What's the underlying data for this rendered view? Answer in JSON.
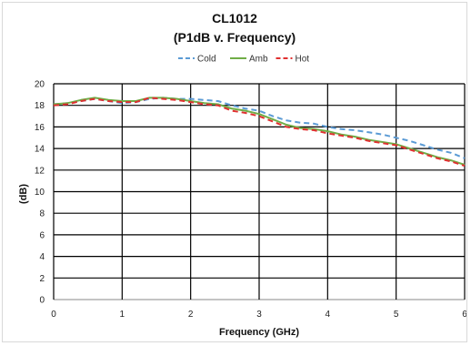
{
  "chart_data": {
    "type": "line",
    "title": "CL1012",
    "subtitle": "(P1dB v. Frequency)",
    "xlabel": "Frequency (GHz)",
    "ylabel": "(dB)",
    "xlim": [
      0,
      6
    ],
    "ylim": [
      0,
      20
    ],
    "xticks": [
      "0",
      "1",
      "2",
      "3",
      "4",
      "5",
      "6"
    ],
    "yticks": [
      "0",
      "2",
      "4",
      "6",
      "8",
      "10",
      "12",
      "14",
      "16",
      "18",
      "20"
    ],
    "grid": true,
    "legend_position": "top-center",
    "series": [
      {
        "name": "Cold",
        "color": "#5b9bd5",
        "dash": "dashed",
        "x": [
          0,
          0.2,
          0.4,
          0.6,
          0.8,
          1.0,
          1.2,
          1.4,
          1.6,
          1.8,
          2.0,
          2.2,
          2.4,
          2.6,
          2.8,
          3.0,
          3.2,
          3.4,
          3.6,
          3.8,
          4.0,
          4.2,
          4.4,
          4.6,
          4.8,
          5.0,
          5.2,
          5.4,
          5.6,
          5.8,
          6.0
        ],
        "values": [
          18.1,
          18.2,
          18.4,
          18.6,
          18.4,
          18.2,
          18.3,
          18.6,
          18.7,
          18.6,
          18.6,
          18.5,
          18.4,
          18.0,
          17.7,
          17.5,
          17.0,
          16.6,
          16.4,
          16.3,
          16.0,
          15.8,
          15.7,
          15.5,
          15.3,
          15.0,
          14.7,
          14.3,
          13.9,
          13.6,
          13.1
        ]
      },
      {
        "name": "Amb",
        "color": "#70ad47",
        "dash": "solid",
        "x": [
          0,
          0.2,
          0.4,
          0.6,
          0.8,
          1.0,
          1.2,
          1.4,
          1.6,
          1.8,
          2.0,
          2.2,
          2.4,
          2.6,
          2.8,
          3.0,
          3.2,
          3.4,
          3.6,
          3.8,
          4.0,
          4.2,
          4.4,
          4.6,
          4.8,
          5.0,
          5.2,
          5.4,
          5.6,
          5.8,
          6.0
        ],
        "values": [
          18.1,
          18.2,
          18.5,
          18.7,
          18.5,
          18.4,
          18.4,
          18.7,
          18.7,
          18.6,
          18.4,
          18.2,
          18.1,
          17.7,
          17.5,
          17.2,
          16.7,
          16.2,
          15.9,
          15.8,
          15.6,
          15.3,
          15.1,
          14.8,
          14.6,
          14.4,
          14.0,
          13.6,
          13.2,
          12.9,
          12.5
        ]
      },
      {
        "name": "Hot",
        "color": "#e03030",
        "dash": "dashed",
        "x": [
          0,
          0.2,
          0.4,
          0.6,
          0.8,
          1.0,
          1.2,
          1.4,
          1.6,
          1.8,
          2.0,
          2.2,
          2.4,
          2.6,
          2.8,
          3.0,
          3.2,
          3.4,
          3.6,
          3.8,
          4.0,
          4.2,
          4.4,
          4.6,
          4.8,
          5.0,
          5.2,
          5.4,
          5.6,
          5.8,
          6.0
        ],
        "values": [
          18.0,
          18.1,
          18.4,
          18.6,
          18.4,
          18.3,
          18.3,
          18.7,
          18.6,
          18.5,
          18.3,
          18.1,
          18.0,
          17.5,
          17.3,
          17.0,
          16.5,
          16.0,
          15.8,
          15.7,
          15.4,
          15.2,
          15.0,
          14.7,
          14.5,
          14.3,
          13.9,
          13.5,
          13.1,
          12.8,
          12.4
        ]
      }
    ]
  }
}
